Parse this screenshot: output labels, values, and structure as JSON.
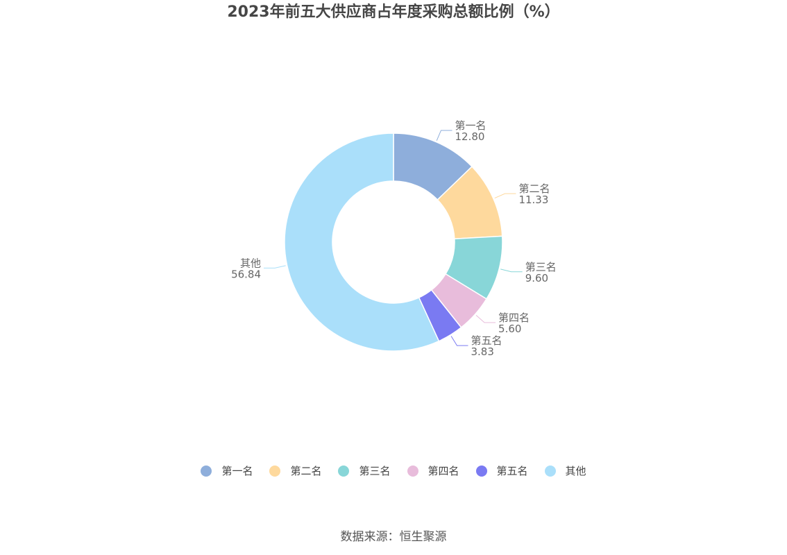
{
  "chart_data": {
    "type": "pie",
    "title": "2023年前五大供应商占年度采购总额比例（%）",
    "donut": true,
    "categories": [
      "第一名",
      "第二名",
      "第三名",
      "第四名",
      "第五名",
      "其他"
    ],
    "values": [
      12.8,
      11.33,
      9.6,
      5.6,
      3.83,
      56.84
    ],
    "value_labels": [
      "12.80",
      "11.33",
      "9.60",
      "5.60",
      "3.83",
      "56.84"
    ],
    "colors": [
      "#8eaedb",
      "#fed99d",
      "#88d6d8",
      "#e8bcdb",
      "#7a7af2",
      "#aadffa"
    ],
    "legend_position": "bottom"
  },
  "source": "数据来源：恒生聚源"
}
